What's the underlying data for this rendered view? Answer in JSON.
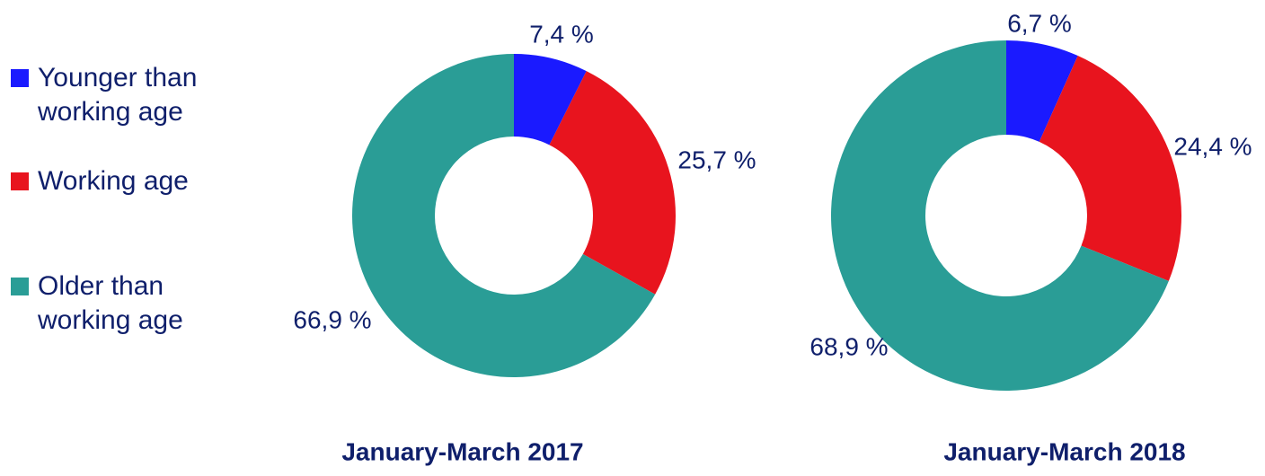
{
  "chart_data": [
    {
      "type": "pie",
      "title": "January-March 2017",
      "categories": [
        "Younger than working age",
        "Working age",
        "Older than working age"
      ],
      "colors": [
        "#1a1aff",
        "#e8141e",
        "#2a9d96"
      ],
      "values": [
        7.4,
        25.7,
        66.9
      ],
      "value_labels": [
        "7,4 %",
        "25,7 %",
        "66,9 %"
      ]
    },
    {
      "type": "pie",
      "title": "January-March 2018",
      "colors": [
        "#1a1aff",
        "#e8141e",
        "#2a9d96"
      ],
      "values": [
        6.7,
        24.4,
        68.9
      ],
      "value_labels": [
        "6,7 %",
        "24,4 %",
        "68,9 %"
      ]
    }
  ]
}
